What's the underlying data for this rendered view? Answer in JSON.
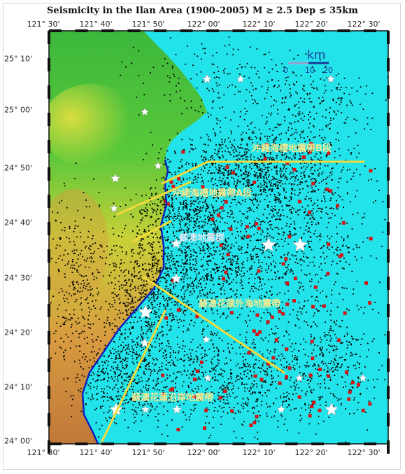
{
  "title": "Seismicity in the Ilan Area (1900–2005) M  ≥ 2.5  Dep ≤ 35km",
  "longitude_ticks": [
    "121° 30'",
    "121° 40'",
    "121° 50'",
    "122° 00'",
    "122° 10'",
    "122° 20'",
    "122° 30'"
  ],
  "latitude_ticks": [
    "25° 10'",
    "25° 00'",
    "24° 50'",
    "24° 40'",
    "24° 30'",
    "24° 20'",
    "24° 10'",
    "24° 00'"
  ],
  "scale_bar": {
    "unit": "km",
    "labels": [
      "0",
      "10",
      "20"
    ]
  },
  "fault_labels": {
    "okinawa_b": "沖繩海槽地震帶B段",
    "okinawa_a": "沖繩海槽地震帶A段",
    "suao": "蘇澳地震群",
    "suao_hualien_offshore": "蘇澳花蓮外海地震帶",
    "suao_hualien_coast": "蘇澳花蓮沿岸地震帶"
  },
  "colors": {
    "sea": "#23e3ea",
    "land_green": "#3cb83c",
    "land_yellow": "#d8d830",
    "land_orange": "#c9803a",
    "fault_line": "#f2da3a",
    "fault_label": "#f2e890",
    "quake_dot": "#000000",
    "large_quake": "#d01818",
    "star": "#ffffff",
    "coastline": "#1020b8"
  }
}
